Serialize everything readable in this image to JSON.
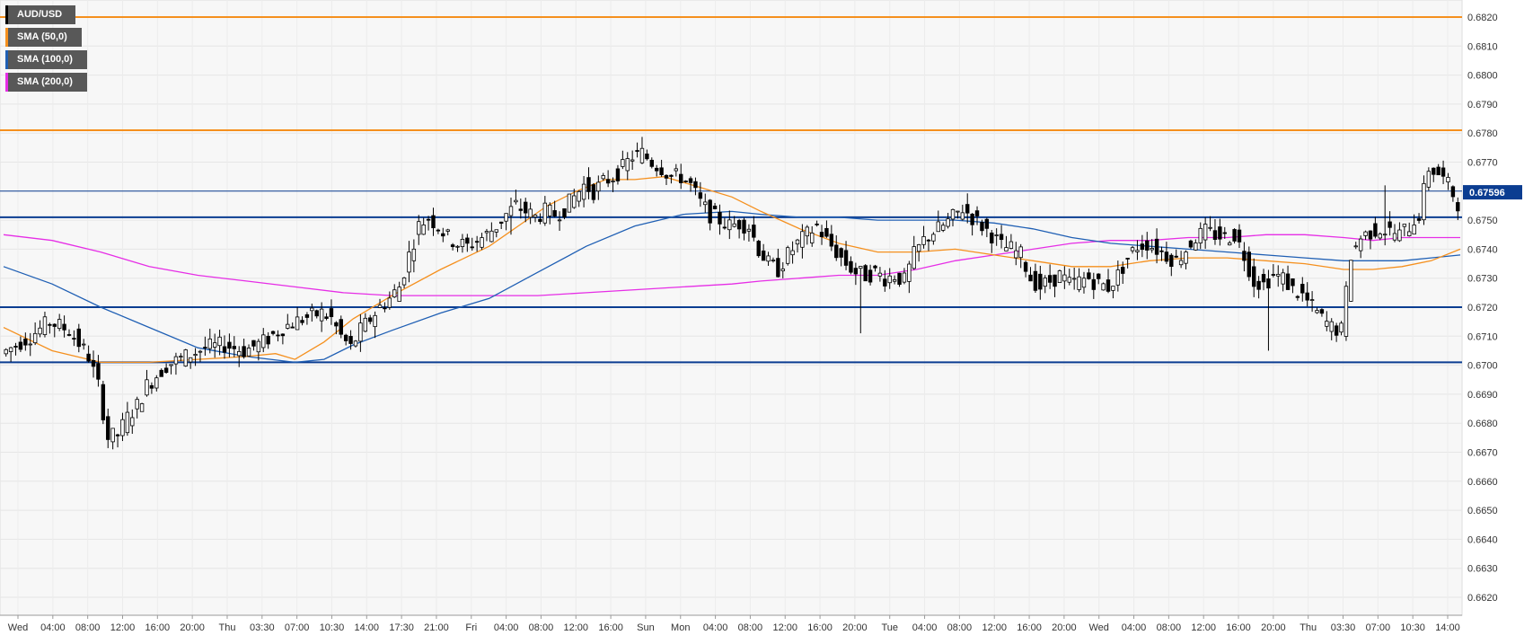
{
  "chart_data": {
    "type": "candlestick",
    "title": "",
    "xlabel": "",
    "ylabel": "",
    "symbol": "AUD/USD",
    "ylim": [
      0.662,
      0.6825
    ],
    "y_ticks": [
      "0.6820",
      "0.6810",
      "0.6800",
      "0.6790",
      "0.6780",
      "0.6770",
      "0.6760",
      "0.6750",
      "0.6740",
      "0.6730",
      "0.6720",
      "0.6710",
      "0.6700",
      "0.6690",
      "0.6680",
      "0.6670",
      "0.6660",
      "0.6650",
      "0.6640",
      "0.6630",
      "0.6620"
    ],
    "x_ticks": [
      "Wed",
      "04:00",
      "08:00",
      "12:00",
      "16:00",
      "20:00",
      "Thu",
      "03:30",
      "07:00",
      "10:30",
      "14:00",
      "17:30",
      "21:00",
      "Fri",
      "04:00",
      "08:00",
      "12:00",
      "16:00",
      "Sun",
      "Mon",
      "04:00",
      "08:00",
      "12:00",
      "16:00",
      "20:00",
      "Tue",
      "04:00",
      "08:00",
      "12:00",
      "16:00",
      "20:00",
      "Wed",
      "04:00",
      "08:00",
      "12:00",
      "16:00",
      "20:00",
      "Thu",
      "03:30",
      "07:00",
      "10:30",
      "14:00"
    ],
    "current_price": "0.67596",
    "legend": [
      {
        "name": "AUD/USD",
        "color": "#000000"
      },
      {
        "name": "SMA (50,0)",
        "color": "#f5901e"
      },
      {
        "name": "SMA (100,0)",
        "color": "#1f5fb4"
      },
      {
        "name": "SMA (200,0)",
        "color": "#e62ee6"
      }
    ],
    "horizontal_levels": [
      {
        "value": 0.682,
        "color": "#f5901e"
      },
      {
        "value": 0.6781,
        "color": "#f5901e"
      },
      {
        "value": 0.676,
        "color": "#0b3d91"
      },
      {
        "value": 0.6751,
        "color": "#0b3d91"
      },
      {
        "value": 0.672,
        "color": "#0b3d91"
      },
      {
        "value": 0.6701,
        "color": "#0b3d91"
      }
    ],
    "price_path": [
      [
        0,
        0.6704
      ],
      [
        6,
        0.671
      ],
      [
        10,
        0.6715
      ],
      [
        14,
        0.6712
      ],
      [
        18,
        0.6703
      ],
      [
        20,
        0.6693
      ],
      [
        22,
        0.6675
      ],
      [
        24,
        0.6676
      ],
      [
        26,
        0.6682
      ],
      [
        28,
        0.6686
      ],
      [
        30,
        0.6693
      ],
      [
        34,
        0.67
      ],
      [
        38,
        0.6703
      ],
      [
        42,
        0.6706
      ],
      [
        46,
        0.6707
      ],
      [
        50,
        0.6705
      ],
      [
        54,
        0.6708
      ],
      [
        58,
        0.6713
      ],
      [
        62,
        0.6716
      ],
      [
        66,
        0.6718
      ],
      [
        68,
        0.6716
      ],
      [
        70,
        0.671
      ],
      [
        72,
        0.6706
      ],
      [
        74,
        0.6712
      ],
      [
        76,
        0.6716
      ],
      [
        78,
        0.672
      ],
      [
        80,
        0.6723
      ],
      [
        82,
        0.6727
      ],
      [
        84,
        0.6738
      ],
      [
        86,
        0.6748
      ],
      [
        88,
        0.6751
      ],
      [
        90,
        0.6748
      ],
      [
        92,
        0.6744
      ],
      [
        94,
        0.6742
      ],
      [
        96,
        0.6741
      ],
      [
        98,
        0.6743
      ],
      [
        100,
        0.6745
      ],
      [
        102,
        0.6748
      ],
      [
        104,
        0.6752
      ],
      [
        106,
        0.6755
      ],
      [
        108,
        0.6753
      ],
      [
        110,
        0.6751
      ],
      [
        112,
        0.6753
      ],
      [
        114,
        0.6752
      ],
      [
        116,
        0.6754
      ],
      [
        118,
        0.6758
      ],
      [
        120,
        0.6762
      ],
      [
        122,
        0.676
      ],
      [
        124,
        0.6763
      ],
      [
        126,
        0.6765
      ],
      [
        128,
        0.6768
      ],
      [
        130,
        0.6772
      ],
      [
        132,
        0.6773
      ],
      [
        134,
        0.677
      ],
      [
        136,
        0.6768
      ],
      [
        138,
        0.6765
      ],
      [
        140,
        0.6765
      ],
      [
        142,
        0.6762
      ],
      [
        144,
        0.6756
      ],
      [
        146,
        0.6752
      ],
      [
        148,
        0.675
      ],
      [
        150,
        0.6748
      ],
      [
        152,
        0.6749
      ],
      [
        154,
        0.6748
      ],
      [
        156,
        0.674
      ],
      [
        158,
        0.6735
      ],
      [
        160,
        0.6733
      ],
      [
        162,
        0.6738
      ],
      [
        164,
        0.6742
      ],
      [
        166,
        0.6745
      ],
      [
        168,
        0.6748
      ],
      [
        170,
        0.6743
      ],
      [
        172,
        0.6739
      ],
      [
        174,
        0.6735
      ],
      [
        176,
        0.6732
      ],
      [
        178,
        0.6731
      ],
      [
        180,
        0.6732
      ],
      [
        182,
        0.673
      ],
      [
        184,
        0.6731
      ],
      [
        186,
        0.6729
      ],
      [
        188,
        0.6738
      ],
      [
        190,
        0.6743
      ],
      [
        192,
        0.6746
      ],
      [
        194,
        0.6748
      ],
      [
        196,
        0.6751
      ],
      [
        198,
        0.6754
      ],
      [
        200,
        0.6751
      ],
      [
        202,
        0.6748
      ],
      [
        204,
        0.6745
      ],
      [
        206,
        0.6741
      ],
      [
        208,
        0.674
      ],
      [
        210,
        0.6738
      ],
      [
        212,
        0.673
      ],
      [
        214,
        0.6727
      ],
      [
        216,
        0.6729
      ],
      [
        218,
        0.6731
      ],
      [
        220,
        0.6728
      ],
      [
        222,
        0.6729
      ],
      [
        224,
        0.673
      ],
      [
        226,
        0.6728
      ],
      [
        228,
        0.6727
      ],
      [
        230,
        0.6731
      ],
      [
        232,
        0.6737
      ],
      [
        234,
        0.6741
      ],
      [
        236,
        0.6742
      ],
      [
        238,
        0.674
      ],
      [
        240,
        0.6738
      ],
      [
        242,
        0.6736
      ],
      [
        244,
        0.674
      ],
      [
        246,
        0.6744
      ],
      [
        248,
        0.6746
      ],
      [
        250,
        0.6745
      ],
      [
        252,
        0.6744
      ],
      [
        254,
        0.6745
      ],
      [
        256,
        0.6738
      ],
      [
        258,
        0.6729
      ],
      [
        260,
        0.6728
      ],
      [
        262,
        0.6731
      ],
      [
        264,
        0.673
      ],
      [
        266,
        0.6726
      ],
      [
        268,
        0.6724
      ],
      [
        270,
        0.672
      ],
      [
        272,
        0.6716
      ],
      [
        274,
        0.6713
      ],
      [
        276,
        0.6712
      ],
      [
        278,
        0.6738
      ],
      [
        280,
        0.6744
      ],
      [
        282,
        0.6746
      ],
      [
        284,
        0.6747
      ],
      [
        286,
        0.6746
      ],
      [
        288,
        0.6745
      ],
      [
        290,
        0.6748
      ],
      [
        292,
        0.6752
      ],
      [
        294,
        0.6768
      ],
      [
        296,
        0.6766
      ],
      [
        298,
        0.6762
      ],
      [
        300,
        0.6756
      ]
    ],
    "wicks": [
      [
        104,
        0.6745
      ],
      [
        176,
        0.6711
      ],
      [
        260,
        0.6705
      ],
      [
        284,
        0.6762
      ],
      [
        276,
        0.671
      ],
      [
        22,
        0.6671
      ]
    ],
    "sma50": [
      [
        0,
        0.6713
      ],
      [
        10,
        0.6705
      ],
      [
        20,
        0.6701
      ],
      [
        30,
        0.6701
      ],
      [
        40,
        0.6702
      ],
      [
        50,
        0.6703
      ],
      [
        56,
        0.6704
      ],
      [
        60,
        0.6702
      ],
      [
        66,
        0.6708
      ],
      [
        72,
        0.6716
      ],
      [
        80,
        0.6724
      ],
      [
        90,
        0.6733
      ],
      [
        100,
        0.6741
      ],
      [
        106,
        0.6748
      ],
      [
        112,
        0.6755
      ],
      [
        118,
        0.676
      ],
      [
        124,
        0.6764
      ],
      [
        130,
        0.6764
      ],
      [
        136,
        0.6765
      ],
      [
        142,
        0.6762
      ],
      [
        150,
        0.6758
      ],
      [
        156,
        0.6753
      ],
      [
        164,
        0.6747
      ],
      [
        172,
        0.6742
      ],
      [
        180,
        0.6739
      ],
      [
        188,
        0.6739
      ],
      [
        196,
        0.674
      ],
      [
        204,
        0.6738
      ],
      [
        212,
        0.6736
      ],
      [
        220,
        0.6734
      ],
      [
        228,
        0.6734
      ],
      [
        236,
        0.6736
      ],
      [
        244,
        0.6737
      ],
      [
        252,
        0.6737
      ],
      [
        260,
        0.6736
      ],
      [
        268,
        0.6735
      ],
      [
        276,
        0.6733
      ],
      [
        282,
        0.6733
      ],
      [
        288,
        0.6734
      ],
      [
        294,
        0.6736
      ],
      [
        300,
        0.674
      ]
    ],
    "sma100": [
      [
        0,
        0.6734
      ],
      [
        10,
        0.6728
      ],
      [
        20,
        0.672
      ],
      [
        30,
        0.6713
      ],
      [
        40,
        0.6706
      ],
      [
        50,
        0.6703
      ],
      [
        60,
        0.6701
      ],
      [
        66,
        0.6702
      ],
      [
        72,
        0.6707
      ],
      [
        80,
        0.6712
      ],
      [
        90,
        0.6718
      ],
      [
        100,
        0.6723
      ],
      [
        110,
        0.6732
      ],
      [
        120,
        0.6741
      ],
      [
        130,
        0.6748
      ],
      [
        140,
        0.6752
      ],
      [
        150,
        0.6753
      ],
      [
        156,
        0.6752
      ],
      [
        164,
        0.6751
      ],
      [
        172,
        0.6751
      ],
      [
        180,
        0.675
      ],
      [
        188,
        0.675
      ],
      [
        196,
        0.675
      ],
      [
        204,
        0.6749
      ],
      [
        212,
        0.6747
      ],
      [
        220,
        0.6744
      ],
      [
        228,
        0.6742
      ],
      [
        236,
        0.6741
      ],
      [
        244,
        0.674
      ],
      [
        252,
        0.6739
      ],
      [
        260,
        0.6738
      ],
      [
        268,
        0.6737
      ],
      [
        276,
        0.6736
      ],
      [
        282,
        0.6736
      ],
      [
        288,
        0.6736
      ],
      [
        294,
        0.6737
      ],
      [
        300,
        0.6738
      ]
    ],
    "sma200": [
      [
        0,
        0.6745
      ],
      [
        10,
        0.6743
      ],
      [
        20,
        0.6739
      ],
      [
        30,
        0.6734
      ],
      [
        40,
        0.6731
      ],
      [
        50,
        0.6729
      ],
      [
        60,
        0.6727
      ],
      [
        70,
        0.6725
      ],
      [
        80,
        0.6724
      ],
      [
        90,
        0.6724
      ],
      [
        100,
        0.6724
      ],
      [
        110,
        0.6724
      ],
      [
        120,
        0.6725
      ],
      [
        130,
        0.6726
      ],
      [
        140,
        0.6727
      ],
      [
        150,
        0.6728
      ],
      [
        156,
        0.6729
      ],
      [
        164,
        0.673
      ],
      [
        172,
        0.6731
      ],
      [
        180,
        0.6731
      ],
      [
        188,
        0.6733
      ],
      [
        196,
        0.6736
      ],
      [
        204,
        0.6738
      ],
      [
        212,
        0.674
      ],
      [
        220,
        0.6742
      ],
      [
        228,
        0.6743
      ],
      [
        236,
        0.6743
      ],
      [
        244,
        0.6744
      ],
      [
        252,
        0.6744
      ],
      [
        260,
        0.6745
      ],
      [
        268,
        0.6745
      ],
      [
        276,
        0.6744
      ],
      [
        282,
        0.6743
      ],
      [
        288,
        0.6744
      ],
      [
        294,
        0.6744
      ],
      [
        300,
        0.6744
      ]
    ]
  }
}
